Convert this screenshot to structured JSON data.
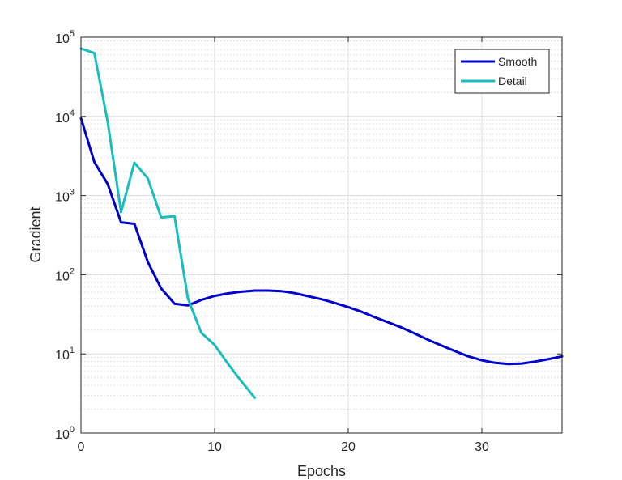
{
  "chart_data": {
    "type": "line",
    "title": "",
    "xlabel": "Epochs",
    "ylabel": "Gradient",
    "xlim": [
      0,
      36
    ],
    "ylim": [
      1,
      100000
    ],
    "yscale": "log",
    "grid": true,
    "minor_grid": true,
    "legend": "top-right",
    "xticks": [
      0,
      10,
      20,
      30
    ],
    "yticks": [
      {
        "value": 1,
        "base": "10",
        "exp": "0"
      },
      {
        "value": 10,
        "base": "10",
        "exp": "1"
      },
      {
        "value": 100,
        "base": "10",
        "exp": "2"
      },
      {
        "value": 1000,
        "base": "10",
        "exp": "3"
      },
      {
        "value": 10000,
        "base": "10",
        "exp": "4"
      },
      {
        "value": 100000,
        "base": "10",
        "exp": "5"
      }
    ],
    "series": [
      {
        "name": "Smooth",
        "color": "#0000cc",
        "x": [
          0,
          1,
          2,
          3,
          4,
          5,
          6,
          7,
          8,
          9,
          10,
          11,
          12,
          13,
          14,
          15,
          16,
          17,
          18,
          19,
          20,
          21,
          22,
          23,
          24,
          25,
          26,
          27,
          28,
          29,
          30,
          31,
          32,
          33,
          34,
          35,
          36
        ],
        "y": [
          9500,
          2650,
          1400,
          460,
          440,
          145,
          67,
          43,
          41,
          48,
          54,
          58,
          61,
          63,
          63,
          62,
          58.5,
          53.5,
          49,
          44,
          39,
          34,
          29,
          25,
          21.5,
          18,
          15,
          12.7,
          10.8,
          9.3,
          8.3,
          7.7,
          7.45,
          7.55,
          8,
          8.6,
          9.3
        ]
      },
      {
        "name": "Detail",
        "color": "#17bebb",
        "x": [
          0,
          1,
          2,
          3,
          4,
          5,
          6,
          7,
          8,
          9,
          10,
          11,
          12,
          13
        ],
        "y": [
          72000,
          63000,
          8500,
          620,
          2600,
          1650,
          530,
          550,
          50,
          18.5,
          13,
          7.5,
          4.5,
          2.8
        ]
      }
    ]
  }
}
